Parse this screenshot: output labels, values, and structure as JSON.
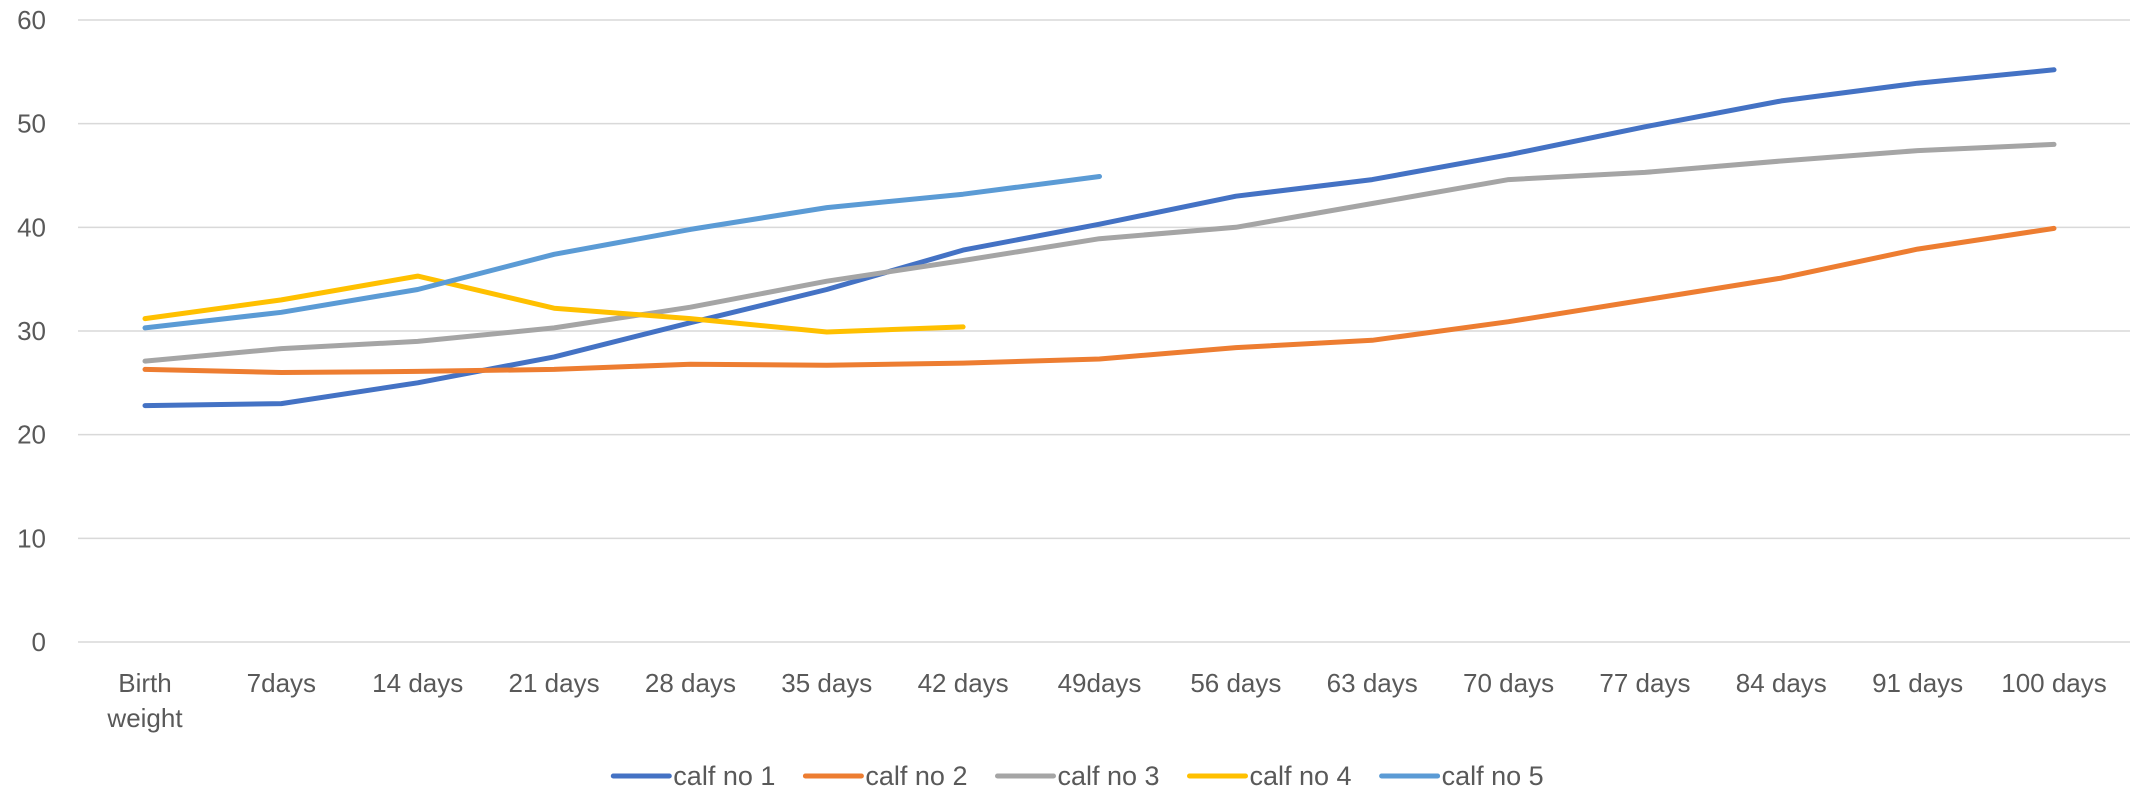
{
  "chart_data": {
    "type": "line",
    "title": "",
    "xlabel": "",
    "ylabel": "",
    "ylim": [
      0,
      60
    ],
    "yticks": [
      0,
      10,
      20,
      30,
      40,
      50,
      60
    ],
    "grid": "horizontal",
    "legend_position": "bottom",
    "categories": [
      [
        "Birth",
        "weight"
      ],
      [
        "7days"
      ],
      [
        "14 days"
      ],
      [
        "21 days"
      ],
      [
        "28 days"
      ],
      [
        "35 days"
      ],
      [
        "42 days"
      ],
      [
        "49days"
      ],
      [
        "56 days"
      ],
      [
        "63 days"
      ],
      [
        "70 days"
      ],
      [
        "77 days"
      ],
      [
        "84 days"
      ],
      [
        "91 days"
      ],
      [
        "100 days"
      ]
    ],
    "series": [
      {
        "name": "calf no 1",
        "color": "#4472C4",
        "values": [
          22.8,
          23.0,
          25.0,
          27.5,
          30.8,
          34.0,
          37.8,
          40.3,
          43.0,
          44.6,
          47.0,
          49.7,
          52.2,
          53.9,
          55.2
        ]
      },
      {
        "name": "calf no 2",
        "color": "#ED7D31",
        "values": [
          26.3,
          26.0,
          26.1,
          26.3,
          26.8,
          26.7,
          26.9,
          27.3,
          28.4,
          29.1,
          30.9,
          33.0,
          35.1,
          37.9,
          39.9
        ]
      },
      {
        "name": "calf no 3",
        "color": "#A5A5A5",
        "values": [
          27.1,
          28.3,
          29.0,
          30.3,
          32.3,
          34.8,
          36.8,
          38.9,
          40.0,
          42.3,
          44.6,
          45.3,
          46.4,
          47.4,
          48.0
        ]
      },
      {
        "name": "calf no 4",
        "color": "#FFC000",
        "values": [
          31.2,
          33.0,
          35.3,
          32.2,
          31.2,
          29.9,
          30.4,
          null,
          null,
          null,
          null,
          null,
          null,
          null,
          null
        ]
      },
      {
        "name": "calf no 5",
        "color": "#5B9BD5",
        "values": [
          30.3,
          31.8,
          34.0,
          37.4,
          39.8,
          41.9,
          43.2,
          44.9,
          null,
          null,
          null,
          null,
          null,
          null,
          null
        ]
      }
    ]
  },
  "colors": {
    "gridline": "#D9D9D9",
    "text": "#595959"
  }
}
